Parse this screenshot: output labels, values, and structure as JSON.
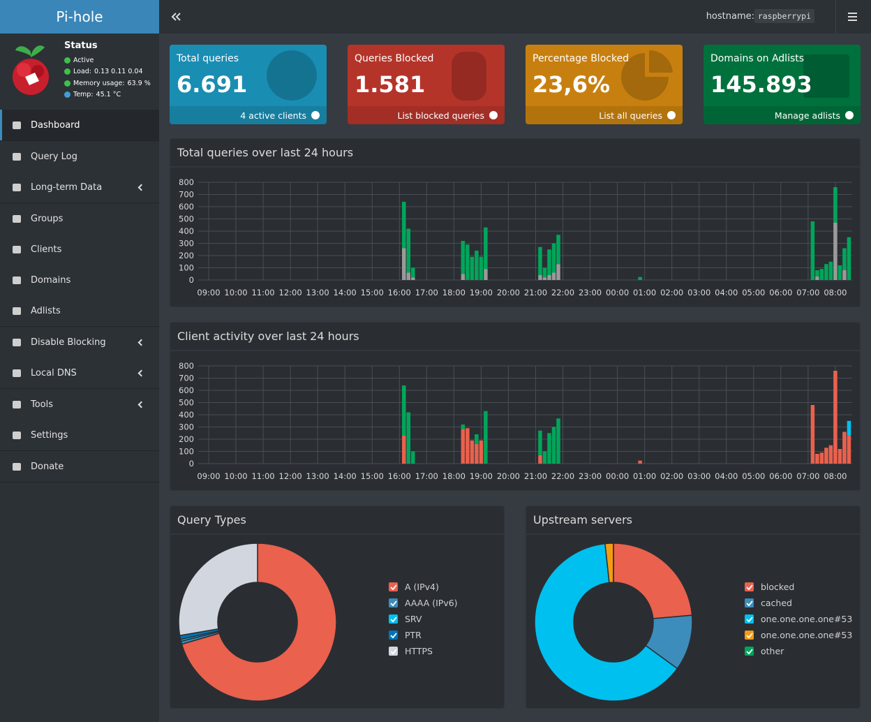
{
  "header": {
    "brand": "Pi-hole",
    "hostname_label": "hostname:",
    "hostname": "raspberrypi"
  },
  "status": {
    "title": "Status",
    "items": [
      {
        "label": "Active",
        "color": "#3ec14a"
      },
      {
        "label": "Load:",
        "value": "0.13  0.11  0.04",
        "color": "#3ec14a"
      },
      {
        "label": "Memory usage:",
        "value": "63.9 %",
        "color": "#3ec14a"
      },
      {
        "label": "Temp:",
        "value": "45.1 °C",
        "color": "#3c9fd8"
      }
    ]
  },
  "menu": [
    [
      {
        "label": "Dashboard",
        "active": true
      }
    ],
    [
      {
        "label": "Query Log"
      },
      {
        "label": "Long-term Data",
        "submenu": true
      }
    ],
    [
      {
        "label": "Groups"
      },
      {
        "label": "Clients"
      },
      {
        "label": "Domains"
      },
      {
        "label": "Adlists"
      }
    ],
    [
      {
        "label": "Disable Blocking",
        "submenu": true
      },
      {
        "label": "Local DNS",
        "submenu": true
      }
    ],
    [
      {
        "label": "Tools",
        "submenu": true
      },
      {
        "label": "Settings"
      }
    ],
    [
      {
        "label": "Donate"
      }
    ]
  ],
  "stats": [
    {
      "title": "Total queries",
      "value": "6.691",
      "footer": "4 active clients",
      "color": "#1a8db3"
    },
    {
      "title": "Queries Blocked",
      "value": "1.581",
      "footer": "List blocked queries",
      "color": "#b5342a"
    },
    {
      "title": "Percentage Blocked",
      "value": "23,6%",
      "footer": "List all queries",
      "color": "#c7800f"
    },
    {
      "title": "Domains on Adlists",
      "value": "145.893",
      "footer": "Manage adlists",
      "color": "#00713d"
    }
  ],
  "chart_data": [
    {
      "type": "bar",
      "title": "Total queries over last 24 hours",
      "stacked": true,
      "grid": true,
      "ylim": [
        0,
        800
      ],
      "yticks": [
        0,
        100,
        200,
        300,
        400,
        500,
        600,
        700,
        800
      ],
      "categories": [
        "09:00",
        null,
        null,
        null,
        null,
        null,
        "10:00",
        null,
        null,
        null,
        null,
        null,
        "11:00",
        null,
        null,
        null,
        null,
        null,
        "12:00",
        null,
        null,
        null,
        null,
        null,
        "13:00",
        null,
        null,
        null,
        null,
        null,
        "14:00",
        null,
        null,
        null,
        null,
        null,
        "15:00",
        null,
        null,
        null,
        null,
        null,
        "16:00",
        null,
        null,
        null,
        null,
        null,
        "17:00",
        null,
        null,
        null,
        null,
        null,
        "18:00",
        null,
        null,
        null,
        null,
        null,
        "19:00",
        null,
        null,
        null,
        null,
        null,
        "20:00",
        null,
        null,
        null,
        null,
        null,
        "21:00",
        null,
        null,
        null,
        null,
        null,
        "22:00",
        null,
        null,
        null,
        null,
        null,
        "23:00",
        null,
        null,
        null,
        null,
        null,
        "00:00",
        null,
        null,
        null,
        null,
        null,
        "01:00",
        null,
        null,
        null,
        null,
        null,
        "02:00",
        null,
        null,
        null,
        null,
        null,
        "03:00",
        null,
        null,
        null,
        null,
        null,
        "04:00",
        null,
        null,
        null,
        null,
        null,
        "05:00",
        null,
        null,
        null,
        null,
        null,
        "06:00",
        null,
        null,
        null,
        null,
        null,
        "07:00",
        null,
        null,
        null,
        null,
        null,
        "08:00",
        null,
        null,
        null,
        null,
        null
      ],
      "series": [
        {
          "color": "#9a9a9a",
          "values": [
            0,
            0,
            0,
            0,
            0,
            0,
            0,
            0,
            0,
            0,
            0,
            0,
            0,
            0,
            0,
            0,
            0,
            0,
            0,
            0,
            0,
            0,
            0,
            0,
            0,
            0,
            0,
            0,
            0,
            0,
            0,
            0,
            0,
            0,
            0,
            0,
            0,
            0,
            0,
            0,
            0,
            0,
            0,
            260,
            60,
            20,
            0,
            0,
            0,
            0,
            0,
            0,
            0,
            0,
            0,
            0,
            50,
            0,
            0,
            0,
            0,
            90,
            0,
            0,
            0,
            0,
            0,
            0,
            0,
            0,
            0,
            0,
            0,
            40,
            20,
            40,
            60,
            130,
            0,
            0,
            0,
            0,
            0,
            0,
            0,
            0,
            0,
            0,
            0,
            0,
            0,
            0,
            0,
            0,
            0,
            0,
            0,
            0,
            0,
            0,
            0,
            0,
            0,
            0,
            0,
            0,
            0,
            0,
            0,
            0,
            0,
            0,
            0,
            0,
            0,
            0,
            0,
            0,
            0,
            0,
            0,
            0,
            0,
            0,
            0,
            0,
            0,
            0,
            0,
            0,
            0,
            0,
            0,
            0,
            30,
            0,
            0,
            0,
            470,
            0,
            80,
            0,
            0,
            0
          ]
        },
        {
          "color": "#00a65a",
          "values": [
            0,
            0,
            0,
            0,
            0,
            0,
            0,
            0,
            0,
            0,
            0,
            0,
            0,
            0,
            0,
            0,
            0,
            0,
            0,
            0,
            0,
            0,
            0,
            0,
            0,
            0,
            0,
            0,
            0,
            0,
            0,
            0,
            0,
            0,
            0,
            0,
            0,
            0,
            0,
            0,
            0,
            0,
            0,
            380,
            360,
            80,
            0,
            0,
            0,
            0,
            0,
            0,
            0,
            0,
            0,
            0,
            270,
            290,
            190,
            240,
            190,
            340,
            0,
            0,
            0,
            0,
            0,
            0,
            0,
            0,
            0,
            0,
            0,
            230,
            80,
            210,
            240,
            240,
            0,
            0,
            0,
            0,
            0,
            0,
            0,
            0,
            0,
            0,
            0,
            0,
            0,
            0,
            0,
            0,
            0,
            25,
            0,
            0,
            0,
            0,
            0,
            0,
            0,
            0,
            0,
            0,
            0,
            0,
            0,
            0,
            0,
            0,
            0,
            0,
            0,
            0,
            0,
            0,
            0,
            0,
            0,
            0,
            0,
            0,
            0,
            0,
            0,
            0,
            0,
            0,
            0,
            0,
            0,
            480,
            50,
            90,
            130,
            150,
            290,
            120,
            180,
            350,
            0,
            0
          ]
        }
      ]
    },
    {
      "type": "bar",
      "title": "Client activity over last 24 hours",
      "stacked": true,
      "grid": true,
      "ylim": [
        0,
        800
      ],
      "yticks": [
        0,
        100,
        200,
        300,
        400,
        500,
        600,
        700,
        800
      ],
      "categories": [
        "09:00",
        null,
        null,
        null,
        null,
        null,
        "10:00",
        null,
        null,
        null,
        null,
        null,
        "11:00",
        null,
        null,
        null,
        null,
        null,
        "12:00",
        null,
        null,
        null,
        null,
        null,
        "13:00",
        null,
        null,
        null,
        null,
        null,
        "14:00",
        null,
        null,
        null,
        null,
        null,
        "15:00",
        null,
        null,
        null,
        null,
        null,
        "16:00",
        null,
        null,
        null,
        null,
        null,
        "17:00",
        null,
        null,
        null,
        null,
        null,
        "18:00",
        null,
        null,
        null,
        null,
        null,
        "19:00",
        null,
        null,
        null,
        null,
        null,
        "20:00",
        null,
        null,
        null,
        null,
        null,
        "21:00",
        null,
        null,
        null,
        null,
        null,
        "22:00",
        null,
        null,
        null,
        null,
        null,
        "23:00",
        null,
        null,
        null,
        null,
        null,
        "00:00",
        null,
        null,
        null,
        null,
        null,
        "01:00",
        null,
        null,
        null,
        null,
        null,
        "02:00",
        null,
        null,
        null,
        null,
        null,
        "03:00",
        null,
        null,
        null,
        null,
        null,
        "04:00",
        null,
        null,
        null,
        null,
        null,
        "05:00",
        null,
        null,
        null,
        null,
        null,
        "06:00",
        null,
        null,
        null,
        null,
        null,
        "07:00",
        null,
        null,
        null,
        null,
        null,
        "08:00",
        null,
        null,
        null,
        null,
        null
      ],
      "series": [
        {
          "color": "#ea614d",
          "values": [
            0,
            0,
            0,
            0,
            0,
            0,
            0,
            0,
            0,
            0,
            0,
            0,
            0,
            0,
            0,
            0,
            0,
            0,
            0,
            0,
            0,
            0,
            0,
            0,
            0,
            0,
            0,
            0,
            0,
            0,
            0,
            0,
            0,
            0,
            0,
            0,
            0,
            0,
            0,
            0,
            0,
            0,
            0,
            230,
            0,
            0,
            0,
            0,
            0,
            0,
            0,
            0,
            0,
            0,
            0,
            0,
            280,
            290,
            190,
            160,
            190,
            0,
            0,
            0,
            0,
            0,
            0,
            0,
            0,
            0,
            0,
            0,
            0,
            70,
            0,
            0,
            0,
            0,
            0,
            0,
            0,
            0,
            0,
            0,
            0,
            0,
            0,
            0,
            0,
            0,
            0,
            0,
            0,
            0,
            0,
            25,
            0,
            0,
            0,
            0,
            0,
            0,
            0,
            0,
            0,
            0,
            0,
            0,
            0,
            0,
            0,
            0,
            0,
            0,
            0,
            0,
            0,
            0,
            0,
            0,
            0,
            0,
            0,
            0,
            0,
            0,
            0,
            0,
            0,
            0,
            0,
            0,
            0,
            480,
            80,
            90,
            130,
            150,
            760,
            120,
            260,
            230,
            0,
            0
          ]
        },
        {
          "color": "#00a65a",
          "values": [
            0,
            0,
            0,
            0,
            0,
            0,
            0,
            0,
            0,
            0,
            0,
            0,
            0,
            0,
            0,
            0,
            0,
            0,
            0,
            0,
            0,
            0,
            0,
            0,
            0,
            0,
            0,
            0,
            0,
            0,
            0,
            0,
            0,
            0,
            0,
            0,
            0,
            0,
            0,
            0,
            0,
            0,
            0,
            410,
            420,
            100,
            0,
            0,
            0,
            0,
            0,
            0,
            0,
            0,
            0,
            0,
            40,
            0,
            0,
            80,
            0,
            430,
            0,
            0,
            0,
            0,
            0,
            0,
            0,
            0,
            0,
            0,
            0,
            200,
            100,
            250,
            300,
            370,
            0,
            0,
            0,
            0,
            0,
            0,
            0,
            0,
            0,
            0,
            0,
            0,
            0,
            0,
            0,
            0,
            0,
            0,
            0,
            0,
            0,
            0,
            0,
            0,
            0,
            0,
            0,
            0,
            0,
            0,
            0,
            0,
            0,
            0,
            0,
            0,
            0,
            0,
            0,
            0,
            0,
            0,
            0,
            0,
            0,
            0,
            0,
            0,
            0,
            0,
            0,
            0,
            0,
            0,
            0,
            0,
            0,
            0,
            0,
            0,
            0,
            0,
            0,
            0,
            0,
            0
          ]
        },
        {
          "color": "#00c0ef",
          "values": [
            0,
            0,
            0,
            0,
            0,
            0,
            0,
            0,
            0,
            0,
            0,
            0,
            0,
            0,
            0,
            0,
            0,
            0,
            0,
            0,
            0,
            0,
            0,
            0,
            0,
            0,
            0,
            0,
            0,
            0,
            0,
            0,
            0,
            0,
            0,
            0,
            0,
            0,
            0,
            0,
            0,
            0,
            0,
            0,
            0,
            0,
            0,
            0,
            0,
            0,
            0,
            0,
            0,
            0,
            0,
            0,
            0,
            0,
            0,
            0,
            0,
            0,
            0,
            0,
            0,
            0,
            0,
            0,
            0,
            0,
            0,
            0,
            0,
            0,
            0,
            0,
            0,
            0,
            0,
            0,
            0,
            0,
            0,
            0,
            0,
            0,
            0,
            0,
            0,
            0,
            0,
            0,
            0,
            0,
            0,
            0,
            0,
            0,
            0,
            0,
            0,
            0,
            0,
            0,
            0,
            0,
            0,
            0,
            0,
            0,
            0,
            0,
            0,
            0,
            0,
            0,
            0,
            0,
            0,
            0,
            0,
            0,
            0,
            0,
            0,
            0,
            0,
            0,
            0,
            0,
            0,
            0,
            0,
            0,
            0,
            0,
            0,
            0,
            0,
            0,
            0,
            120,
            0,
            0
          ]
        }
      ]
    },
    {
      "type": "donut",
      "title": "Query Types",
      "categories": [
        "A (IPv4)",
        "AAAA (IPv6)",
        "SRV",
        "PTR",
        "HTTPS"
      ],
      "values": [
        70.5,
        0.6,
        0.4,
        0.8,
        27.7
      ],
      "colors": [
        "#ea614d",
        "#3c8dbc",
        "#00c0ef",
        "#0073b7",
        "#d2d6de"
      ]
    },
    {
      "type": "donut",
      "title": "Upstream servers",
      "categories": [
        "blocked",
        "cached",
        "one.one.one.one#53",
        "one.one.one.one#53",
        "other"
      ],
      "values": [
        23.6,
        11.4,
        63.3,
        1.7,
        0
      ],
      "colors": [
        "#ea614d",
        "#3c8dbc",
        "#00c0ef",
        "#f39c12",
        "#00a65a"
      ]
    }
  ]
}
